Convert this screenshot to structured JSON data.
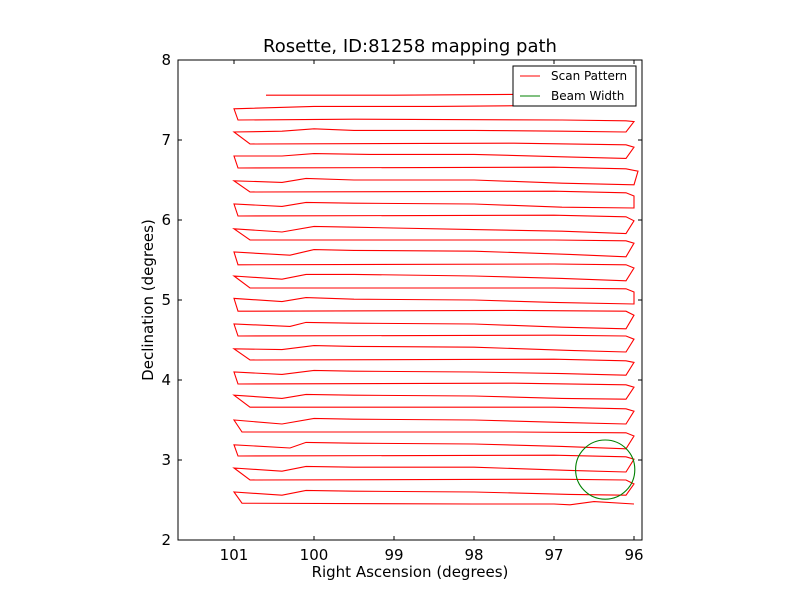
{
  "chart_data": {
    "type": "line",
    "title": "Rosette, ID:81258 mapping path",
    "xlabel": "Right Ascension (degrees)",
    "ylabel": "Declination (degrees)",
    "xlim": [
      101.7,
      95.9
    ],
    "ylim": [
      2,
      8
    ],
    "x_inverted": true,
    "xticks": [
      101,
      100,
      99,
      98,
      97,
      96
    ],
    "yticks": [
      2,
      3,
      4,
      5,
      6,
      7,
      8
    ],
    "grid": false,
    "legend_position": "top-right",
    "series": [
      {
        "name": "Scan Pattern",
        "color": "#ff0000",
        "points": [
          [
            100.6,
            7.56
          ],
          [
            99,
            7.56
          ],
          [
            97.5,
            7.57
          ],
          [
            96.3,
            7.57
          ],
          [
            96.0,
            7.52
          ],
          [
            96.1,
            7.45
          ],
          [
            97.3,
            7.43
          ],
          [
            98.5,
            7.42
          ],
          [
            100,
            7.42
          ],
          [
            101.0,
            7.39
          ],
          [
            100.95,
            7.25
          ],
          [
            99.5,
            7.26
          ],
          [
            96.9,
            7.25
          ],
          [
            96.1,
            7.24
          ],
          [
            96.0,
            7.23
          ],
          [
            96.1,
            7.1
          ],
          [
            96.9,
            7.11
          ],
          [
            98.0,
            7.12
          ],
          [
            99.5,
            7.12
          ],
          [
            100.0,
            7.14
          ],
          [
            100.4,
            7.11
          ],
          [
            101.0,
            7.1
          ],
          [
            100.8,
            6.95
          ],
          [
            97.5,
            6.96
          ],
          [
            96.1,
            6.94
          ],
          [
            96.0,
            6.91
          ],
          [
            96.1,
            6.77
          ],
          [
            96.9,
            6.79
          ],
          [
            98.0,
            6.82
          ],
          [
            99.3,
            6.82
          ],
          [
            100.0,
            6.83
          ],
          [
            100.4,
            6.8
          ],
          [
            101.0,
            6.8
          ],
          [
            100.95,
            6.65
          ],
          [
            97.0,
            6.66
          ],
          [
            96.1,
            6.64
          ],
          [
            95.95,
            6.61
          ],
          [
            96.0,
            6.44
          ],
          [
            96.9,
            6.46
          ],
          [
            98.0,
            6.5
          ],
          [
            99.5,
            6.5
          ],
          [
            100.1,
            6.52
          ],
          [
            100.4,
            6.47
          ],
          [
            101.0,
            6.49
          ],
          [
            100.8,
            6.35
          ],
          [
            97.0,
            6.36
          ],
          [
            96.1,
            6.34
          ],
          [
            96.0,
            6.3
          ],
          [
            96.0,
            6.15
          ],
          [
            96.9,
            6.16
          ],
          [
            98.0,
            6.2
          ],
          [
            99.5,
            6.21
          ],
          [
            100.1,
            6.22
          ],
          [
            100.4,
            6.17
          ],
          [
            101.0,
            6.2
          ],
          [
            100.95,
            6.05
          ],
          [
            97.0,
            6.06
          ],
          [
            96.1,
            6.04
          ],
          [
            96.0,
            5.99
          ],
          [
            96.1,
            5.83
          ],
          [
            96.9,
            5.86
          ],
          [
            98.0,
            5.88
          ],
          [
            99.5,
            5.91
          ],
          [
            100.0,
            5.92
          ],
          [
            100.4,
            5.85
          ],
          [
            101.0,
            5.89
          ],
          [
            100.8,
            5.75
          ],
          [
            97.0,
            5.75
          ],
          [
            96.1,
            5.74
          ],
          [
            96.0,
            5.71
          ],
          [
            96.1,
            5.54
          ],
          [
            96.8,
            5.57
          ],
          [
            98.0,
            5.61
          ],
          [
            99.5,
            5.62
          ],
          [
            100.0,
            5.63
          ],
          [
            100.3,
            5.56
          ],
          [
            101.0,
            5.6
          ],
          [
            100.95,
            5.44
          ],
          [
            97.0,
            5.45
          ],
          [
            96.1,
            5.44
          ],
          [
            96.0,
            5.4
          ],
          [
            96.1,
            5.24
          ],
          [
            96.9,
            5.27
          ],
          [
            98.0,
            5.3
          ],
          [
            99.5,
            5.32
          ],
          [
            100.1,
            5.32
          ],
          [
            100.4,
            5.26
          ],
          [
            101.0,
            5.3
          ],
          [
            100.8,
            5.15
          ],
          [
            97.0,
            5.15
          ],
          [
            96.1,
            5.14
          ],
          [
            96.0,
            5.1
          ],
          [
            96.0,
            4.95
          ],
          [
            97.0,
            4.97
          ],
          [
            98.0,
            5.0
          ],
          [
            99.5,
            5.01
          ],
          [
            100.1,
            5.03
          ],
          [
            100.4,
            4.98
          ],
          [
            101.0,
            5.02
          ],
          [
            100.95,
            4.86
          ],
          [
            97.5,
            4.87
          ],
          [
            96.1,
            4.86
          ],
          [
            96.0,
            4.81
          ],
          [
            96.1,
            4.64
          ],
          [
            96.9,
            4.66
          ],
          [
            98.0,
            4.7
          ],
          [
            99.5,
            4.71
          ],
          [
            100.1,
            4.72
          ],
          [
            100.3,
            4.67
          ],
          [
            101.0,
            4.7
          ],
          [
            100.95,
            4.55
          ],
          [
            97.0,
            4.56
          ],
          [
            96.1,
            4.55
          ],
          [
            96.0,
            4.51
          ],
          [
            96.1,
            4.35
          ],
          [
            96.8,
            4.37
          ],
          [
            98.0,
            4.41
          ],
          [
            99.5,
            4.42
          ],
          [
            100.0,
            4.43
          ],
          [
            100.4,
            4.38
          ],
          [
            101.0,
            4.39
          ],
          [
            100.8,
            4.25
          ],
          [
            97.0,
            4.26
          ],
          [
            96.1,
            4.24
          ],
          [
            96.0,
            4.22
          ],
          [
            96.1,
            4.06
          ],
          [
            96.9,
            4.08
          ],
          [
            98.0,
            4.1
          ],
          [
            99.5,
            4.11
          ],
          [
            100.0,
            4.12
          ],
          [
            100.4,
            4.07
          ],
          [
            101.0,
            4.1
          ],
          [
            100.95,
            3.95
          ],
          [
            97.5,
            3.96
          ],
          [
            96.1,
            3.94
          ],
          [
            96.0,
            3.91
          ],
          [
            96.1,
            3.76
          ],
          [
            96.9,
            3.77
          ],
          [
            98.0,
            3.8
          ],
          [
            99.5,
            3.81
          ],
          [
            100.1,
            3.82
          ],
          [
            100.4,
            3.77
          ],
          [
            101.0,
            3.81
          ],
          [
            100.8,
            3.66
          ],
          [
            97.0,
            3.66
          ],
          [
            96.1,
            3.64
          ],
          [
            96.0,
            3.61
          ],
          [
            96.1,
            3.45
          ],
          [
            96.9,
            3.47
          ],
          [
            98.0,
            3.5
          ],
          [
            99.5,
            3.51
          ],
          [
            100.0,
            3.52
          ],
          [
            100.4,
            3.45
          ],
          [
            101.0,
            3.5
          ],
          [
            100.9,
            3.35
          ],
          [
            97.5,
            3.35
          ],
          [
            96.1,
            3.34
          ],
          [
            96.0,
            3.3
          ],
          [
            96.1,
            3.14
          ],
          [
            96.9,
            3.17
          ],
          [
            98.0,
            3.2
          ],
          [
            99.5,
            3.21
          ],
          [
            100.1,
            3.22
          ],
          [
            100.3,
            3.15
          ],
          [
            101.0,
            3.19
          ],
          [
            100.95,
            3.05
          ],
          [
            97.0,
            3.06
          ],
          [
            96.1,
            3.04
          ],
          [
            96.0,
            3.01
          ],
          [
            96.1,
            2.85
          ],
          [
            96.8,
            2.87
          ],
          [
            98.0,
            2.91
          ],
          [
            99.5,
            2.91
          ],
          [
            100.1,
            2.92
          ],
          [
            100.4,
            2.86
          ],
          [
            101.0,
            2.9
          ],
          [
            100.8,
            2.75
          ],
          [
            97.0,
            2.76
          ],
          [
            96.1,
            2.75
          ],
          [
            96.0,
            2.7
          ],
          [
            96.1,
            2.56
          ],
          [
            96.8,
            2.57
          ],
          [
            98.0,
            2.6
          ],
          [
            99.5,
            2.61
          ],
          [
            100.1,
            2.62
          ],
          [
            100.4,
            2.56
          ],
          [
            101.0,
            2.6
          ],
          [
            100.9,
            2.46
          ],
          [
            98.0,
            2.45
          ],
          [
            97.0,
            2.45
          ],
          [
            96.8,
            2.44
          ],
          [
            96.5,
            2.48
          ],
          [
            96.0,
            2.45
          ]
        ]
      },
      {
        "name": "Beam Width",
        "color": "#008000",
        "shape": "circle",
        "center": [
          96.36,
          2.88
        ],
        "radius_dec": 0.37
      }
    ]
  }
}
